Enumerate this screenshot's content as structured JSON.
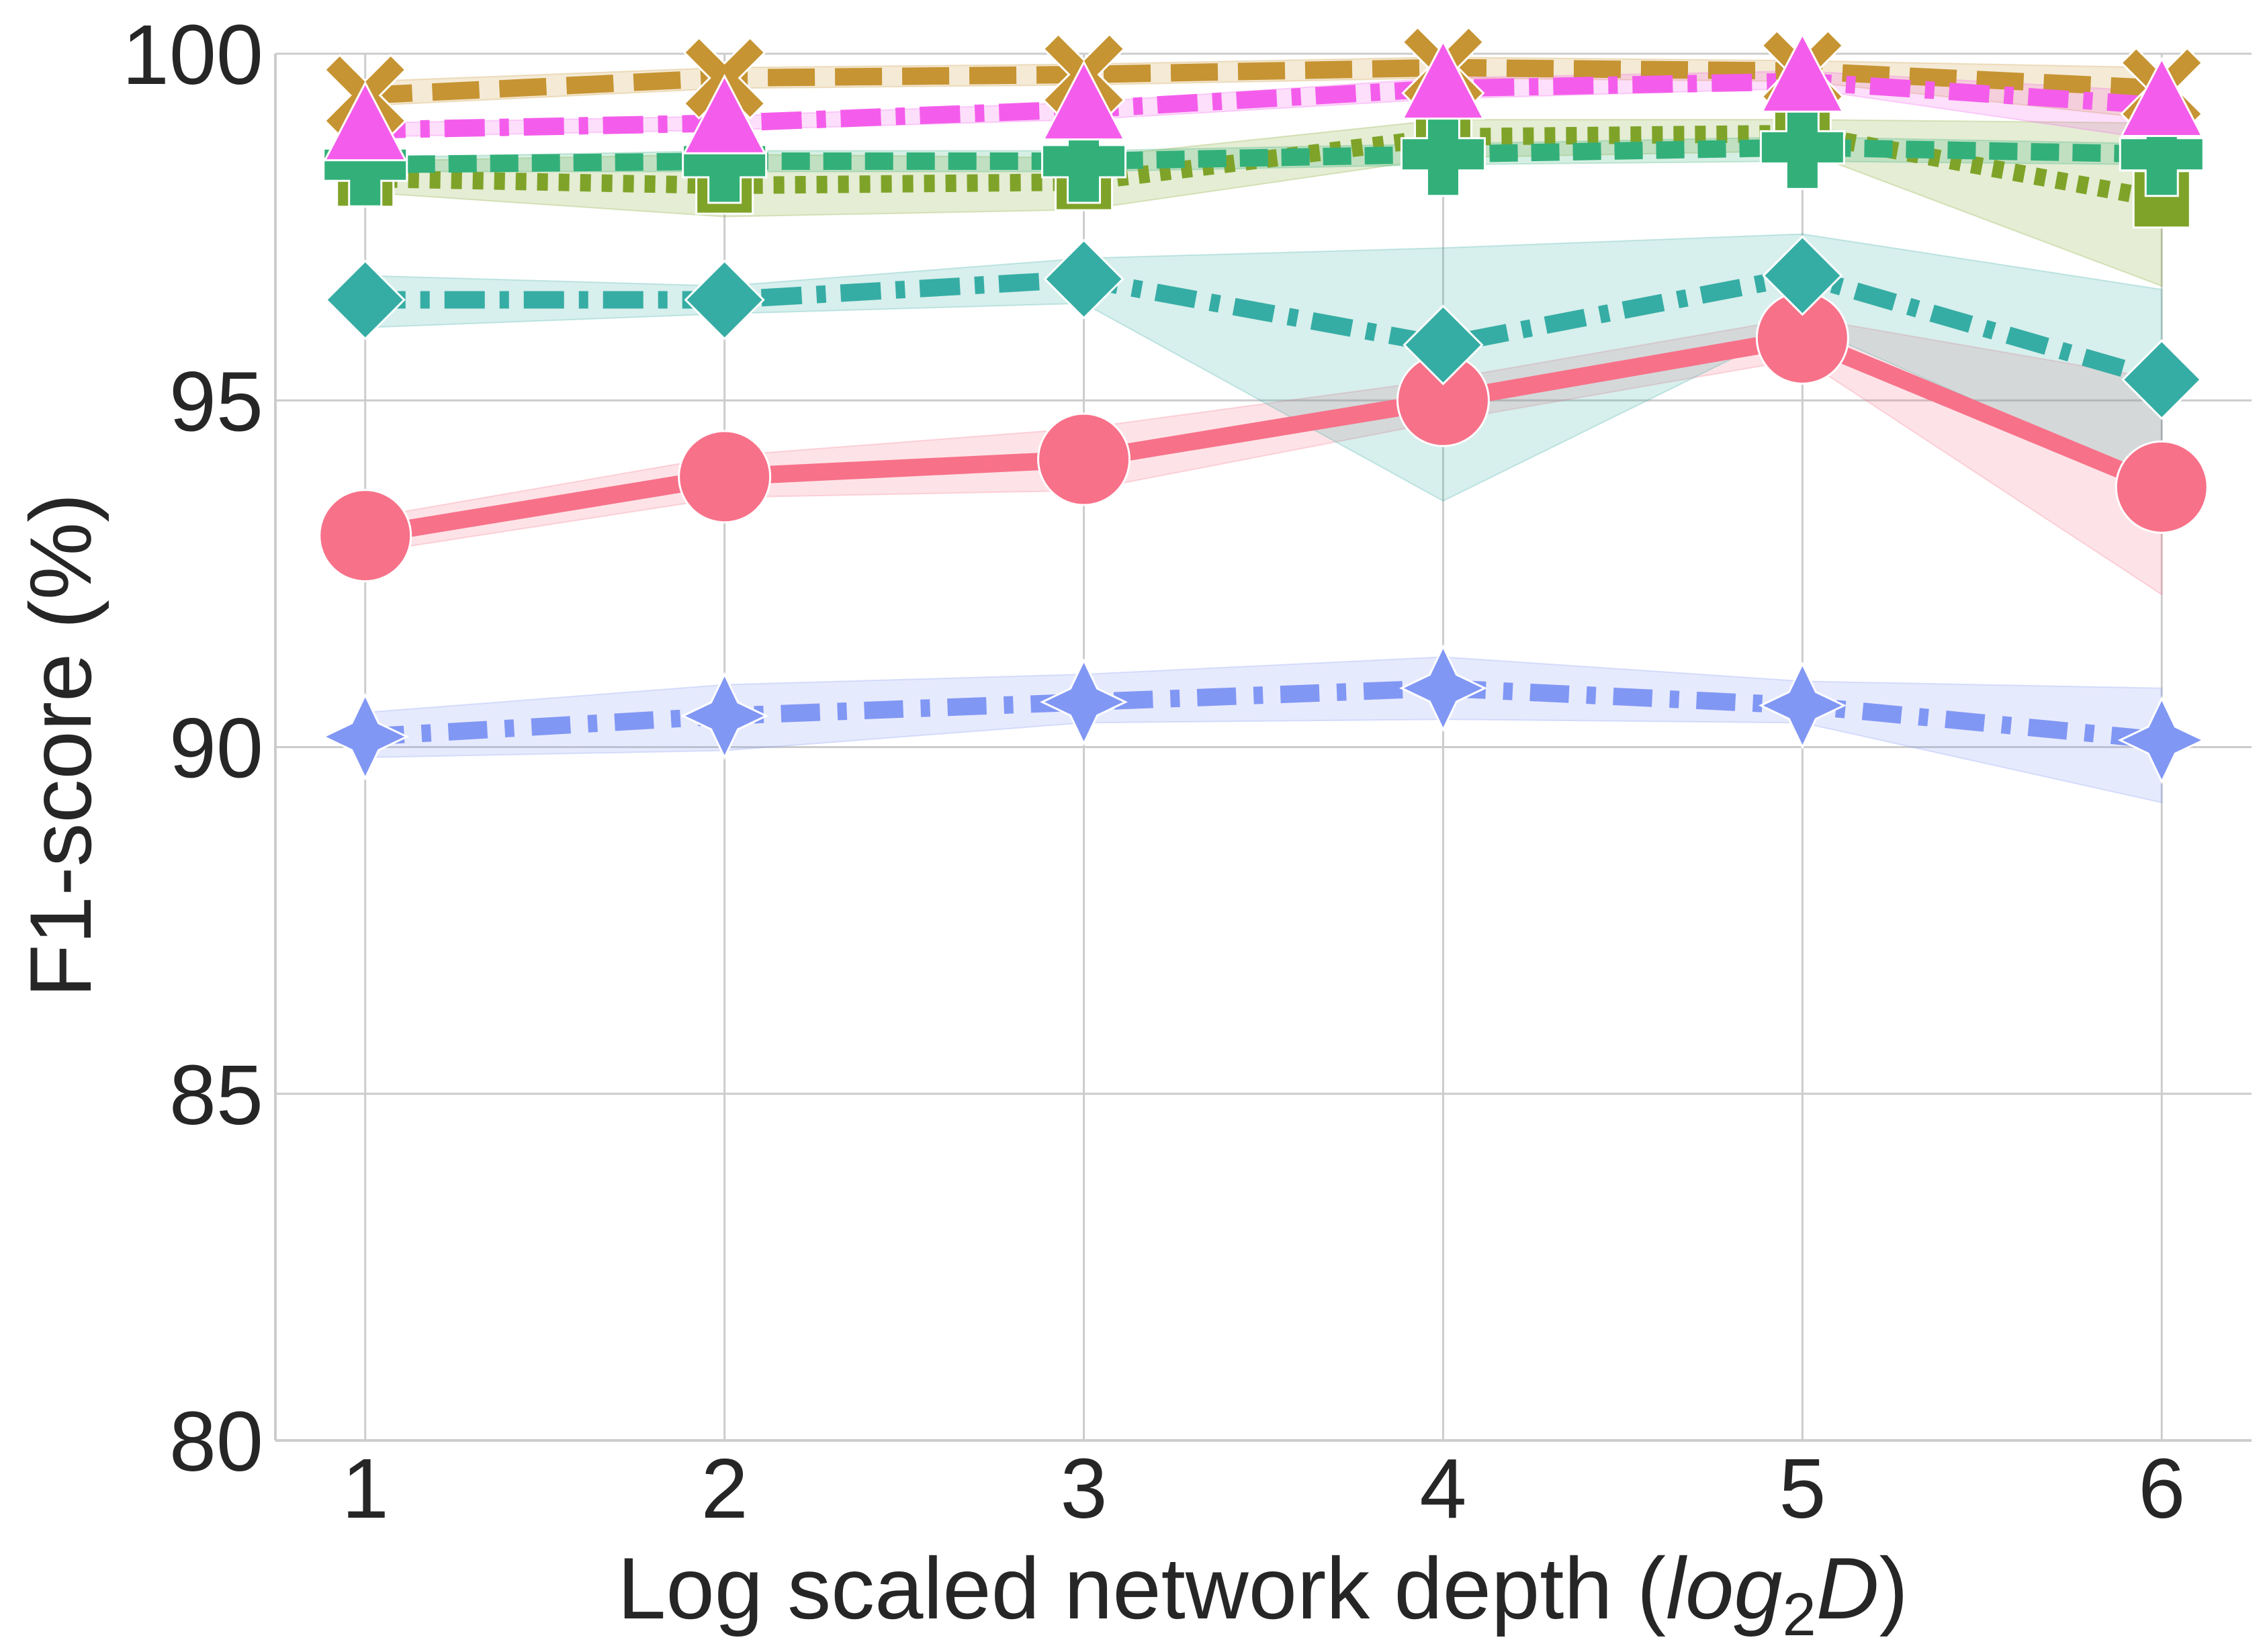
{
  "chart_data": {
    "type": "line",
    "title": "",
    "xlabel_prefix": "Log scaled network depth (",
    "xlabel_math": "log",
    "xlabel_sub": "2",
    "xlabel_var": "D",
    "xlabel_suffix": ")",
    "ylabel": "F1-score (%)",
    "x": [
      1,
      2,
      3,
      4,
      5,
      6
    ],
    "x_tick_labels": [
      "1",
      "2",
      "3",
      "4",
      "5",
      "6"
    ],
    "y_ticks": [
      80,
      85,
      90,
      95,
      100
    ],
    "y_tick_labels": [
      "80",
      "85",
      "90",
      "95",
      "100"
    ],
    "xlim": [
      0.75,
      6.25
    ],
    "ylim": [
      80,
      100
    ],
    "grid": true,
    "series": [
      {
        "name": "series-pink-circle",
        "color": "#f77189",
        "marker": "circle",
        "dash": "solid",
        "values": [
          93.05,
          93.9,
          94.15,
          95.0,
          95.9,
          93.75
        ],
        "lower": [
          92.8,
          93.6,
          93.7,
          94.7,
          95.6,
          92.2
        ],
        "upper": [
          93.3,
          94.2,
          94.6,
          95.3,
          96.2,
          95.3
        ]
      },
      {
        "name": "series-olive-square",
        "color": "#7fa329",
        "marker": "square",
        "dash": "dotted",
        "values": [
          98.2,
          98.1,
          98.15,
          98.8,
          98.85,
          97.9
        ],
        "lower": [
          98.0,
          97.65,
          97.75,
          98.5,
          98.6,
          96.65
        ],
        "upper": [
          98.45,
          98.55,
          98.5,
          99.05,
          99.05,
          99.0
        ]
      },
      {
        "name": "series-green-plus",
        "color": "#33b07a",
        "marker": "plus",
        "dash": "dashed-short",
        "values": [
          98.4,
          98.45,
          98.45,
          98.55,
          98.65,
          98.55
        ],
        "lower": [
          98.3,
          98.3,
          98.3,
          98.4,
          98.45,
          98.4
        ],
        "upper": [
          98.5,
          98.6,
          98.6,
          98.7,
          98.8,
          98.7
        ]
      },
      {
        "name": "series-teal-diamond",
        "color": "#36ada4",
        "marker": "diamond",
        "dash": "dashdot",
        "values": [
          96.45,
          96.45,
          96.75,
          95.8,
          96.8,
          95.3
        ],
        "lower": [
          96.05,
          96.25,
          96.4,
          93.55,
          96.1,
          93.8
        ],
        "upper": [
          96.8,
          96.65,
          97.05,
          97.2,
          97.4,
          96.6
        ]
      },
      {
        "name": "series-blue-star",
        "color": "#8197f4",
        "marker": "star4",
        "dash": "dashdot-long",
        "values": [
          90.15,
          90.45,
          90.65,
          90.85,
          90.6,
          90.1
        ],
        "lower": [
          89.85,
          89.95,
          90.35,
          90.4,
          90.35,
          89.2
        ],
        "upper": [
          90.5,
          90.9,
          91.05,
          91.3,
          90.95,
          90.85
        ]
      },
      {
        "name": "series-gold-x",
        "color": "#c69432",
        "marker": "x",
        "dash": "dashed-long",
        "values": [
          99.4,
          99.65,
          99.7,
          99.8,
          99.75,
          99.5
        ],
        "lower": [
          99.25,
          99.5,
          99.55,
          99.65,
          99.6,
          99.05
        ],
        "upper": [
          99.6,
          99.8,
          99.85,
          99.95,
          99.9,
          99.8
        ]
      },
      {
        "name": "series-magenta-triangle",
        "color": "#f45deb",
        "marker": "triangle",
        "dash": "dashdot",
        "values": [
          98.9,
          99.0,
          99.2,
          99.5,
          99.6,
          99.25
        ],
        "lower": [
          98.8,
          98.9,
          99.05,
          99.35,
          99.5,
          98.75
        ],
        "upper": [
          99.0,
          99.1,
          99.3,
          99.65,
          99.75,
          99.45
        ]
      }
    ]
  }
}
